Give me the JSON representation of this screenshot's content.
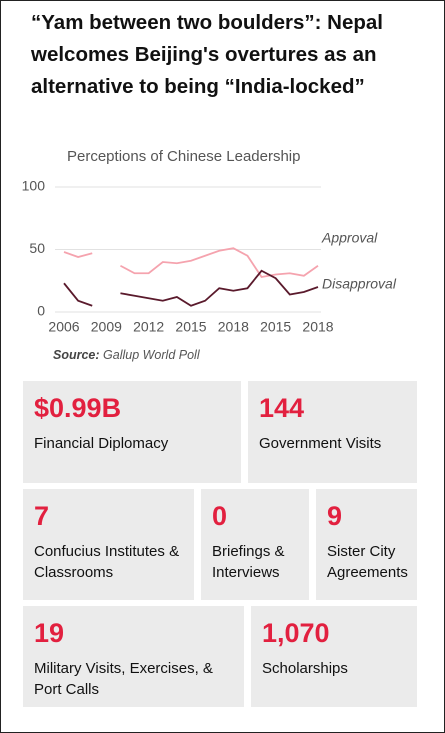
{
  "header": {
    "title": "“Yam between two boulders”: Nepal welcomes Beijing's overtures as an alternative to being “India-locked”"
  },
  "chart_data": {
    "type": "line",
    "title": "Perceptions of Chinese Leadership",
    "categories": [
      "2006",
      null,
      null,
      "2009",
      null,
      null,
      "2012",
      null,
      null,
      "2015",
      null,
      null,
      "2018",
      null,
      null,
      "2015",
      null,
      null,
      "2018"
    ],
    "series": [
      {
        "name": "Approval",
        "color": "#f5a3ae",
        "values": [
          48,
          44,
          47,
          null,
          37,
          31,
          31,
          40,
          39,
          41,
          45,
          49,
          51,
          45,
          28,
          30,
          31,
          29,
          37
        ]
      },
      {
        "name": "Disapproval",
        "color": "#5a1a2c",
        "values": [
          23,
          9,
          5,
          null,
          15,
          13,
          11,
          9,
          12,
          5,
          9,
          19,
          17,
          19,
          33,
          27,
          14,
          16,
          20
        ]
      }
    ],
    "ylim": [
      0,
      100
    ],
    "yticks": [
      0,
      50,
      100
    ],
    "grid": true
  },
  "source": {
    "label": "Source:",
    "text": "Gallup World Poll"
  },
  "tiles": [
    {
      "value": "$0.99B",
      "label": "Financial Diplomacy"
    },
    {
      "value": "144",
      "label": "Government Visits"
    },
    {
      "value": "7",
      "label": "Confucius Institutes & Classrooms"
    },
    {
      "value": "0",
      "label": "Briefings & Interviews"
    },
    {
      "value": "9",
      "label": "Sister City Agreements"
    },
    {
      "value": "19",
      "label": "Military Visits, Exercises, & Port Calls"
    },
    {
      "value": "1,070",
      "label": "Scholarships"
    }
  ]
}
